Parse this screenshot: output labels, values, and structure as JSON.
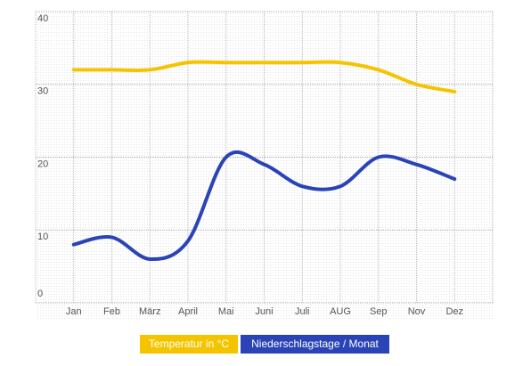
{
  "chart_data": {
    "type": "line",
    "categories": [
      "Jan",
      "Feb",
      "März",
      "April",
      "Mai",
      "Juni",
      "Juli",
      "AUG",
      "Sep",
      "Nov",
      "Dez"
    ],
    "series": [
      {
        "name": "Temperatur in °C",
        "color": "#f5c400",
        "values": [
          32,
          32,
          32,
          33,
          33,
          33,
          33,
          33,
          32,
          30,
          29
        ]
      },
      {
        "name": "Niederschlagstage / Monat",
        "color": "#2a44b8",
        "values": [
          8,
          9,
          6,
          8.5,
          20,
          19,
          16,
          16,
          20,
          19,
          17
        ]
      }
    ],
    "ylim": [
      0,
      40
    ],
    "yticks": [
      0,
      10,
      20,
      30,
      40
    ],
    "grid": true
  }
}
